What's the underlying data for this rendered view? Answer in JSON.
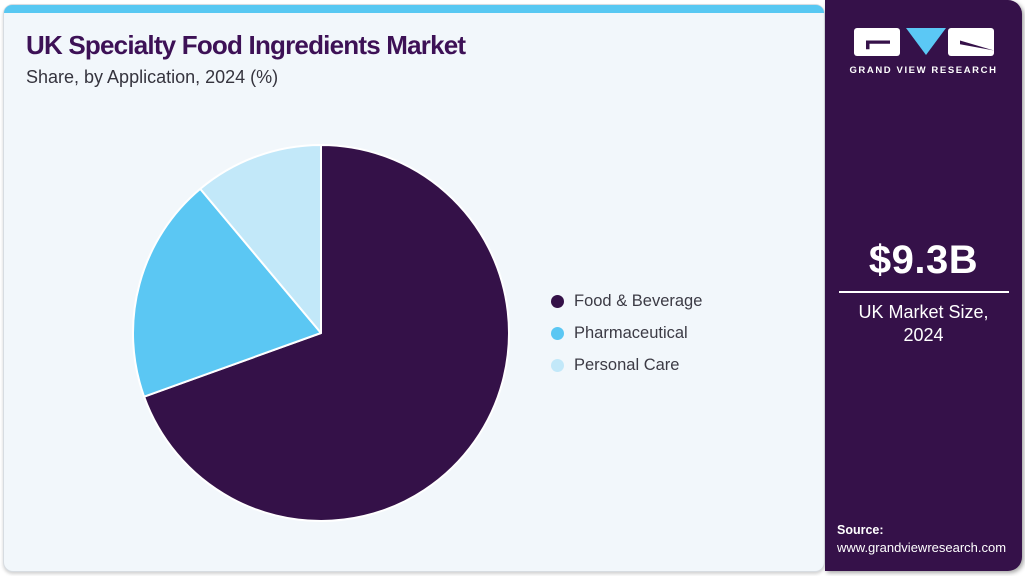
{
  "header": {
    "title": "UK Specialty Food Ingredients Market",
    "subtitle": "Share, by Application, 2024 (%)"
  },
  "chart_data": {
    "type": "pie",
    "title": "UK Specialty Food Ingredients Market Share, by Application, 2024 (%)",
    "units": "%",
    "start_angle_deg": 0,
    "sweep": "clockwise",
    "legend_position": "right",
    "slices": [
      {
        "label": "Food & Beverage",
        "value": 69.5,
        "color": "#341148"
      },
      {
        "label": "Pharmaceutical",
        "value": 19.4,
        "color": "#5bc7f3"
      },
      {
        "label": "Personal Care",
        "value": 11.1,
        "color": "#c2e8f9"
      }
    ]
  },
  "sidebar": {
    "brand": "GRAND VIEW RESEARCH",
    "stat_value": "$9.3B",
    "stat_label_line1": "UK Market Size,",
    "stat_label_line2": "2024",
    "source_label": "Source:",
    "source_url": "www.grandviewresearch.com"
  },
  "colors": {
    "accent_bar": "#58c8f2",
    "sidebar_bg": "#351149",
    "card_bg": "#f2f7fb",
    "title_text": "#3d1156",
    "logo_triangle": "#5bc8f5",
    "slice_gap": "#ffffff"
  }
}
